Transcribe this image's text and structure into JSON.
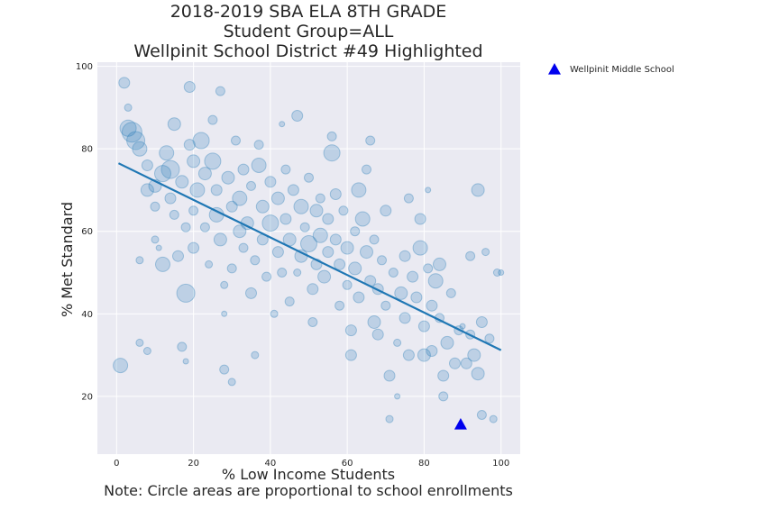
{
  "chart_data": {
    "type": "scatter",
    "title_lines": [
      "2018-2019 SBA ELA 8TH GRADE",
      "Student Group=ALL",
      "Wellpinit School District #49 Highlighted"
    ],
    "xlabel": "% Low Income Students",
    "ylabel": "% Met Standard",
    "note": "Note: Circle areas are proportional to school enrollments",
    "xlim": [
      -5,
      105
    ],
    "ylim": [
      6,
      101
    ],
    "xticks": [
      0,
      20,
      40,
      60,
      80,
      100
    ],
    "yticks": [
      20,
      40,
      60,
      80,
      100
    ],
    "grid": true,
    "legend": {
      "position": "outside-top-right",
      "entries": [
        {
          "label": "Wellpinit Middle School",
          "marker": "triangle",
          "color": "#0000ee"
        }
      ]
    },
    "colors": {
      "points": "#1f77b4",
      "trend": "#1f77b4",
      "highlight": "#0000ee",
      "background": "#eaeaf2"
    },
    "trend_line": {
      "x": [
        0.5,
        100
      ],
      "y": [
        76.5,
        31.2
      ]
    },
    "highlight_point": {
      "name": "Wellpinit Middle School",
      "x": 89.5,
      "y": 13.2
    },
    "series": [
      {
        "name": "Schools",
        "points": [
          [
            2,
            96,
            6
          ],
          [
            1,
            27.5,
            8
          ],
          [
            3,
            90,
            4
          ],
          [
            3,
            85,
            9
          ],
          [
            4,
            84,
            11
          ],
          [
            5,
            82,
            10
          ],
          [
            6,
            80,
            8
          ],
          [
            6,
            53,
            4
          ],
          [
            6,
            33,
            4
          ],
          [
            8,
            31,
            4
          ],
          [
            8,
            70,
            7
          ],
          [
            8,
            76,
            6
          ],
          [
            10,
            71,
            7
          ],
          [
            10,
            66,
            5
          ],
          [
            10,
            58,
            4
          ],
          [
            11,
            56,
            3
          ],
          [
            12,
            52,
            8
          ],
          [
            12,
            74,
            9
          ],
          [
            13,
            79,
            8
          ],
          [
            14,
            75,
            10
          ],
          [
            14,
            68,
            6
          ],
          [
            15,
            86,
            7
          ],
          [
            15,
            64,
            5
          ],
          [
            16,
            54,
            6
          ],
          [
            17,
            72,
            7
          ],
          [
            17,
            32,
            5
          ],
          [
            18,
            28.5,
            3
          ],
          [
            18,
            45,
            10
          ],
          [
            18,
            61,
            5
          ],
          [
            19,
            95,
            6
          ],
          [
            19,
            81,
            6
          ],
          [
            20,
            77,
            7
          ],
          [
            20,
            65,
            5
          ],
          [
            20,
            56,
            6
          ],
          [
            21,
            70,
            8
          ],
          [
            22,
            82,
            9
          ],
          [
            23,
            74,
            7
          ],
          [
            23,
            61,
            5
          ],
          [
            24,
            52,
            4
          ],
          [
            25,
            87,
            5
          ],
          [
            25,
            77,
            9
          ],
          [
            26,
            70,
            6
          ],
          [
            26,
            64,
            8
          ],
          [
            27,
            58,
            7
          ],
          [
            27,
            94,
            5
          ],
          [
            28,
            47,
            4
          ],
          [
            28,
            40,
            3
          ],
          [
            28,
            26.5,
            5
          ],
          [
            29,
            73,
            7
          ],
          [
            30,
            66,
            6
          ],
          [
            30,
            51,
            5
          ],
          [
            30,
            23.5,
            4
          ],
          [
            31,
            82,
            5
          ],
          [
            32,
            68,
            8
          ],
          [
            32,
            60,
            7
          ],
          [
            33,
            75,
            6
          ],
          [
            33,
            56,
            5
          ],
          [
            34,
            62,
            7
          ],
          [
            35,
            45,
            6
          ],
          [
            35,
            71,
            5
          ],
          [
            36,
            53,
            5
          ],
          [
            36,
            30,
            4
          ],
          [
            37,
            81,
            5
          ],
          [
            37,
            76,
            8
          ],
          [
            38,
            66,
            7
          ],
          [
            38,
            58,
            6
          ],
          [
            39,
            49,
            5
          ],
          [
            40,
            72,
            6
          ],
          [
            40,
            62,
            9
          ],
          [
            41,
            40,
            4
          ],
          [
            42,
            68,
            7
          ],
          [
            42,
            55,
            6
          ],
          [
            43,
            50,
            5
          ],
          [
            43,
            86,
            3
          ],
          [
            44,
            75,
            5
          ],
          [
            44,
            63,
            6
          ],
          [
            45,
            58,
            7
          ],
          [
            45,
            43,
            5
          ],
          [
            46,
            70,
            6
          ],
          [
            47,
            88,
            6
          ],
          [
            47,
            50,
            4
          ],
          [
            48,
            66,
            8
          ],
          [
            48,
            54,
            7
          ],
          [
            49,
            61,
            5
          ],
          [
            50,
            73,
            5
          ],
          [
            50,
            57,
            9
          ],
          [
            51,
            46,
            6
          ],
          [
            51,
            38,
            5
          ],
          [
            52,
            65,
            7
          ],
          [
            52,
            52,
            6
          ],
          [
            53,
            68,
            5
          ],
          [
            53,
            59,
            8
          ],
          [
            54,
            49,
            7
          ],
          [
            55,
            63,
            6
          ],
          [
            55,
            55,
            6
          ],
          [
            56,
            83,
            5
          ],
          [
            56,
            79,
            9
          ],
          [
            57,
            69,
            6
          ],
          [
            57,
            58,
            6
          ],
          [
            58,
            42,
            5
          ],
          [
            58,
            52,
            6
          ],
          [
            59,
            65,
            5
          ],
          [
            60,
            47,
            5
          ],
          [
            60,
            56,
            7
          ],
          [
            61,
            36,
            6
          ],
          [
            61,
            30,
            6
          ],
          [
            62,
            60,
            5
          ],
          [
            62,
            51,
            7
          ],
          [
            63,
            70,
            8
          ],
          [
            63,
            44,
            6
          ],
          [
            64,
            63,
            8
          ],
          [
            65,
            55,
            7
          ],
          [
            65,
            75,
            5
          ],
          [
            66,
            82,
            5
          ],
          [
            66,
            48,
            6
          ],
          [
            67,
            38,
            7
          ],
          [
            67,
            58,
            5
          ],
          [
            68,
            46,
            6
          ],
          [
            68,
            35,
            6
          ],
          [
            69,
            53,
            5
          ],
          [
            70,
            65,
            6
          ],
          [
            70,
            42,
            5
          ],
          [
            71,
            25,
            6
          ],
          [
            71,
            14.5,
            4
          ],
          [
            72,
            50,
            5
          ],
          [
            73,
            33,
            4
          ],
          [
            73,
            20,
            3
          ],
          [
            74,
            45,
            7
          ],
          [
            75,
            54,
            6
          ],
          [
            75,
            39,
            6
          ],
          [
            76,
            68,
            5
          ],
          [
            76,
            30,
            6
          ],
          [
            77,
            49,
            6
          ],
          [
            78,
            44,
            6
          ],
          [
            79,
            56,
            8
          ],
          [
            79,
            63,
            6
          ],
          [
            80,
            37,
            6
          ],
          [
            80,
            30,
            7
          ],
          [
            81,
            70,
            3
          ],
          [
            81,
            51,
            5
          ],
          [
            82,
            42,
            6
          ],
          [
            82,
            31,
            6
          ],
          [
            83,
            48,
            8
          ],
          [
            84,
            52,
            7
          ],
          [
            84,
            39,
            5
          ],
          [
            85,
            25,
            6
          ],
          [
            85,
            20,
            5
          ],
          [
            86,
            33,
            7
          ],
          [
            87,
            45,
            5
          ],
          [
            88,
            28,
            6
          ],
          [
            89,
            36,
            5
          ],
          [
            90,
            37,
            3
          ],
          [
            91,
            28,
            6
          ],
          [
            92,
            54,
            5
          ],
          [
            92,
            35,
            5
          ],
          [
            93,
            30,
            7
          ],
          [
            94,
            70,
            7
          ],
          [
            94,
            25.5,
            7
          ],
          [
            95,
            38,
            6
          ],
          [
            95,
            15.5,
            5
          ],
          [
            96,
            55,
            4
          ],
          [
            97,
            34,
            5
          ],
          [
            98,
            14.5,
            4
          ],
          [
            99,
            50,
            4
          ],
          [
            100,
            50,
            3
          ]
        ]
      }
    ]
  }
}
